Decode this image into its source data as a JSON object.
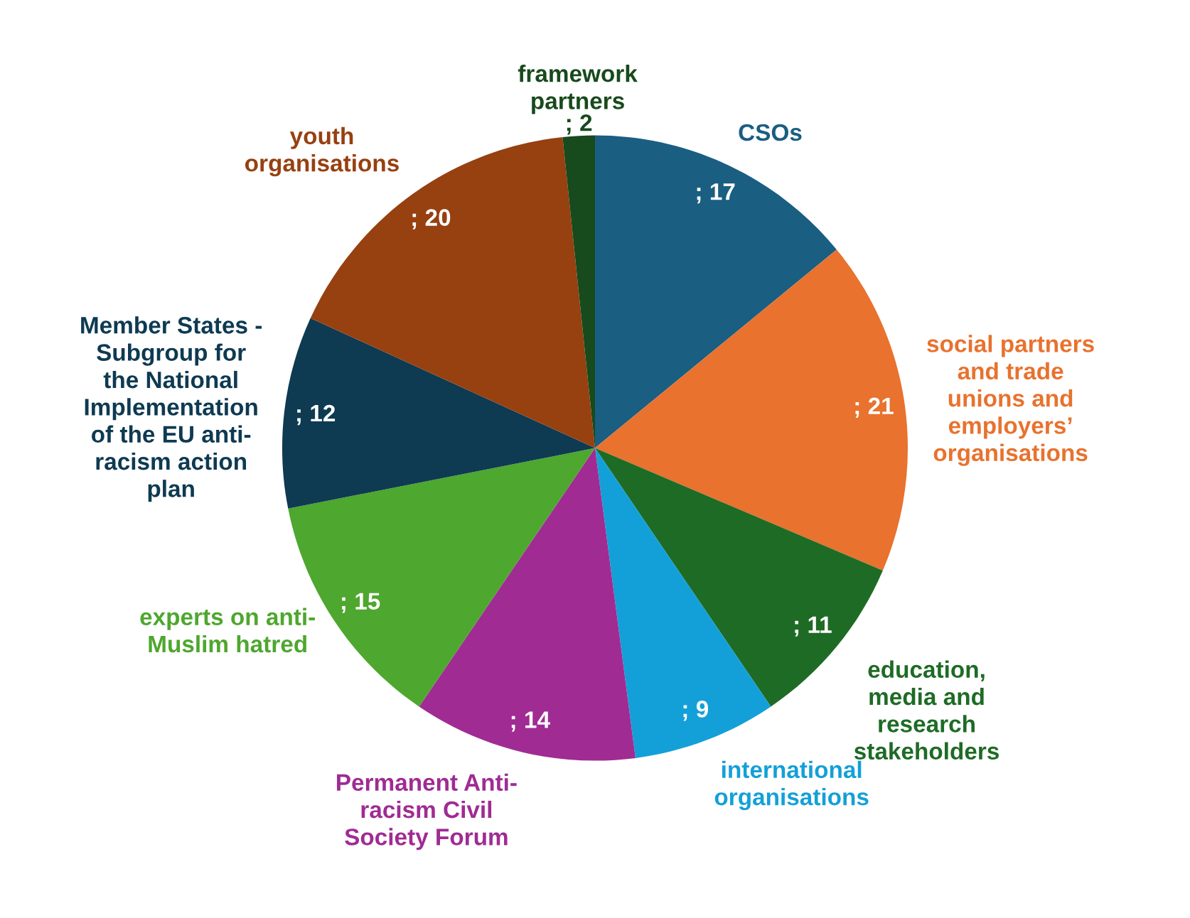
{
  "chart_data": {
    "type": "pie",
    "categories": [
      "CSOs",
      "social partners\nand trade\nunions and\nemployers’\norganisations",
      "education,\nmedia and\nresearch\nstakeholders",
      "international\norganisations",
      "Permanent Anti-\nracism Civil\nSociety Forum",
      "experts on anti-\nMuslim hatred",
      "Member States -\nSubgroup for\nthe National\nImplementation\nof the EU anti-\nracism action\nplan",
      "youth\norganisations",
      "framework\npartners"
    ],
    "values": [
      17,
      21,
      11,
      9,
      14,
      15,
      12,
      20,
      2
    ],
    "colors": [
      "#1a5e82",
      "#e8722e",
      "#1e6b25",
      "#13a0d8",
      "#a02b93",
      "#4ea72e",
      "#0e3a52",
      "#974010",
      "#174a1c"
    ],
    "value_labels": [
      "; 17",
      "; 21",
      "; 11",
      "; 9",
      "; 14",
      "; 15",
      "; 12",
      "; 20",
      "; 2"
    ]
  }
}
